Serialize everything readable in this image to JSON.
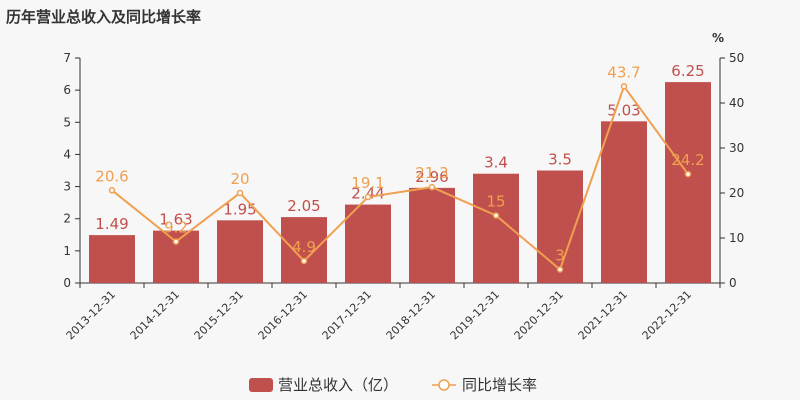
{
  "chart_data": {
    "type": "bar",
    "title": "历年营业总收入及同比增长率",
    "categories": [
      "2013-12-31",
      "2014-12-31",
      "2015-12-31",
      "2016-12-31",
      "2017-12-31",
      "2018-12-31",
      "2019-12-31",
      "2020-12-31",
      "2021-12-31",
      "2022-12-31"
    ],
    "series": [
      {
        "name": "营业总收入（亿）",
        "type": "bar",
        "axis": "left",
        "values": [
          1.49,
          1.63,
          1.95,
          2.05,
          2.44,
          2.96,
          3.4,
          3.5,
          5.03,
          6.25
        ],
        "labels": [
          "1.49",
          "1.63",
          "1.95",
          "2.05",
          "2.44",
          "2.96",
          "3.4",
          "3.5",
          "5.03",
          "6.25"
        ],
        "color": "#c0504d"
      },
      {
        "name": "同比增长率",
        "type": "line",
        "axis": "right",
        "values": [
          20.6,
          9.2,
          20,
          4.9,
          19.1,
          21.3,
          15,
          3,
          43.7,
          24.2
        ],
        "labels": [
          "20.6",
          "9.2",
          "20",
          "4.9",
          "19.1",
          "21.3",
          "15",
          "3",
          "43.7",
          "24.2"
        ],
        "color": "#f0a050"
      }
    ],
    "y_left": {
      "range": [
        0,
        7
      ],
      "ticks": [
        "0",
        "1",
        "2",
        "3",
        "4",
        "5",
        "6",
        "7"
      ]
    },
    "y_right": {
      "range": [
        0,
        50
      ],
      "ticks": [
        "0",
        "10",
        "20",
        "30",
        "40",
        "50"
      ],
      "unit": "%"
    },
    "grid": false,
    "legend": "bottom-center"
  }
}
